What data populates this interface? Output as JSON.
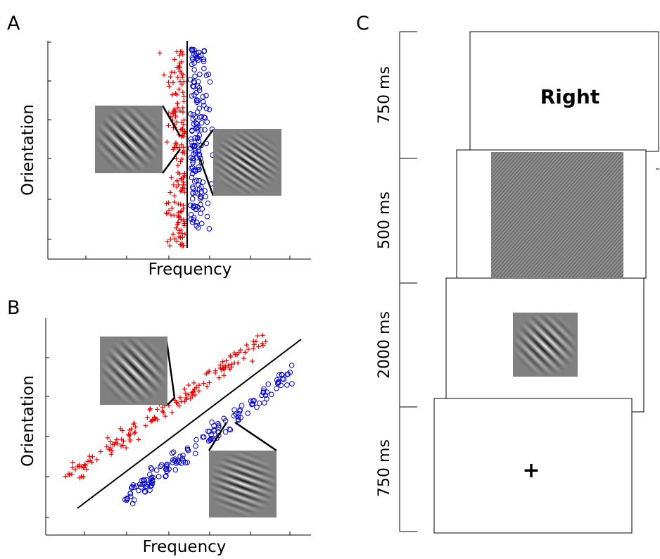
{
  "panels": [
    {
      "label": "A",
      "y_label": "Orientation",
      "x_label": "Frequency"
    },
    {
      "label": "B",
      "y_label": "Orientation",
      "x_label": "Frequency"
    }
  ],
  "timeline": {
    "label": "C",
    "steps": [
      {
        "duration": "750 ms",
        "display": "Right"
      },
      {
        "duration": "500 ms"
      },
      {
        "duration": "2000 ms"
      },
      {
        "duration": "750 ms",
        "display": "+"
      }
    ]
  }
}
